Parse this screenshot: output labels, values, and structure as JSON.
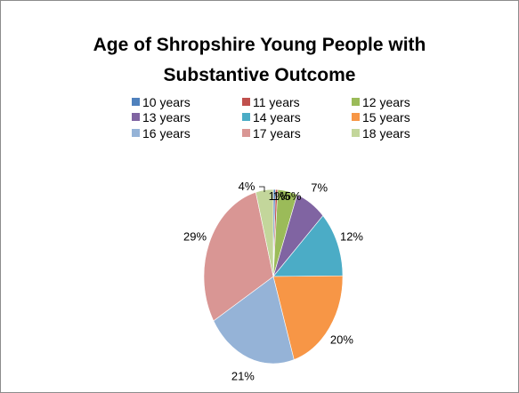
{
  "chart_data": {
    "type": "pie",
    "title": "Age of Shropshire Young People with Substantive Outcome",
    "title_lines": [
      "Age of Shropshire Young People with",
      "Substantive Outcome"
    ],
    "legend_position": "top",
    "slices": [
      {
        "name": "10 years",
        "value": 0.5,
        "label": "",
        "color": "#4f81bd"
      },
      {
        "name": "11 years",
        "value": 0.5,
        "label": "1%",
        "color": "#c0504d"
      },
      {
        "name": "12 years",
        "value": 4.5,
        "label": "5%",
        "color": "#9bbb59"
      },
      {
        "name": "13 years",
        "value": 7,
        "label": "7%",
        "color": "#8064a2"
      },
      {
        "name": "14 years",
        "value": 12,
        "label": "12%",
        "color": "#4bacc6"
      },
      {
        "name": "15 years",
        "value": 20,
        "label": "20%",
        "color": "#f79646"
      },
      {
        "name": "16 years",
        "value": 21,
        "label": "21%",
        "color": "#95b3d7"
      },
      {
        "name": "17 years",
        "value": 29,
        "label": "29%",
        "color": "#d99694"
      },
      {
        "name": "18 years",
        "value": 4,
        "label": "4%",
        "color": "#c3d69b"
      }
    ],
    "extra_labels": [
      "1%"
    ]
  }
}
